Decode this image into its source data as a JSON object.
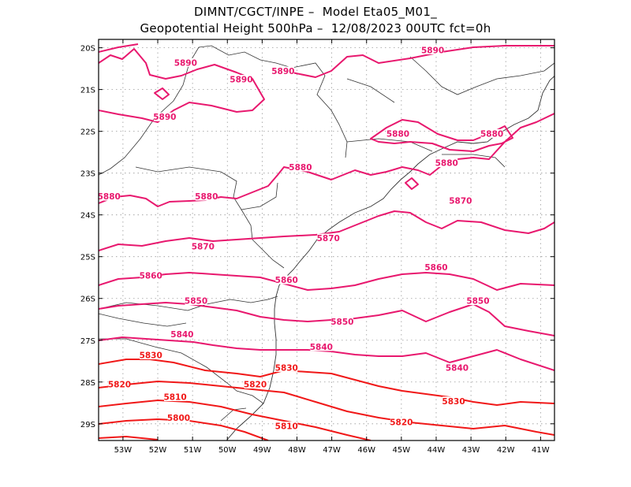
{
  "title": {
    "line1": "DIMNT/CGCT/INPE –  Model Eta05_M01_",
    "line2": "Geopotential Height 500hPa –  12/08/2023 00UTC fct=0h"
  },
  "axes": {
    "lat_labels": [
      "20S",
      "21S",
      "22S",
      "23S",
      "24S",
      "25S",
      "26S",
      "27S",
      "28S",
      "29S"
    ],
    "lat_values": [
      -20,
      -21,
      -22,
      -23,
      -24,
      -25,
      -26,
      -27,
      -28,
      -29
    ],
    "lon_labels": [
      "53W",
      "52W",
      "51W",
      "50W",
      "49W",
      "48W",
      "47W",
      "46W",
      "45W",
      "44W",
      "43W",
      "42W",
      "41W"
    ],
    "lon_values": [
      -53,
      -52,
      -51,
      -50,
      -49,
      -48,
      -47,
      -46,
      -45,
      -44,
      -43,
      -42,
      -41
    ],
    "lon_range": [
      -53.7,
      -40.6
    ],
    "lat_range": [
      -29.4,
      -19.8
    ],
    "grid": "dotted"
  },
  "colors": {
    "border": "#000000",
    "grid": "#999999",
    "coast": "#333333",
    "contour_high": "#e8186e",
    "contour_low": "#f01818"
  },
  "contours": [
    {
      "value": 5890,
      "label": "5890",
      "color": "#e8186e",
      "labels": [
        [
          -51.2,
          -20.4
        ],
        [
          -49.6,
          -20.8
        ],
        [
          -48.4,
          -20.6
        ],
        [
          -44.1,
          -20.1
        ],
        [
          -51.8,
          -21.7
        ]
      ]
    },
    {
      "value": 5880,
      "label": "5880",
      "color": "#e8186e",
      "labels": [
        [
          -47.9,
          -22.9
        ],
        [
          -45.1,
          -22.1
        ],
        [
          -43.7,
          -22.8
        ],
        [
          -42.4,
          -22.1
        ],
        [
          -53.4,
          -23.6
        ],
        [
          -50.6,
          -23.6
        ]
      ]
    },
    {
      "value": 5870,
      "label": "5870",
      "color": "#e8186e",
      "labels": [
        [
          -50.7,
          -24.8
        ],
        [
          -47.1,
          -24.6
        ],
        [
          -43.3,
          -23.7
        ]
      ]
    },
    {
      "value": 5860,
      "label": "5860",
      "color": "#e8186e",
      "labels": [
        [
          -52.2,
          -25.5
        ],
        [
          -48.3,
          -25.6
        ],
        [
          -44.0,
          -25.3
        ]
      ]
    },
    {
      "value": 5850,
      "label": "5850",
      "color": "#e8186e",
      "labels": [
        [
          -50.9,
          -26.1
        ],
        [
          -46.7,
          -26.6
        ],
        [
          -42.8,
          -26.1
        ]
      ]
    },
    {
      "value": 5840,
      "label": "5840",
      "color": "#e8186e",
      "labels": [
        [
          -51.3,
          -26.9
        ],
        [
          -47.3,
          -27.2
        ],
        [
          -43.4,
          -27.7
        ]
      ]
    },
    {
      "value": 5830,
      "label": "5830",
      "color": "#f01818",
      "labels": [
        [
          -52.2,
          -27.4
        ],
        [
          -48.3,
          -27.7
        ],
        [
          -43.5,
          -28.5
        ]
      ]
    },
    {
      "value": 5820,
      "label": "5820",
      "color": "#f01818",
      "labels": [
        [
          -53.1,
          -28.1
        ],
        [
          -49.2,
          -28.1
        ],
        [
          -45.0,
          -29.0
        ]
      ]
    },
    {
      "value": 5810,
      "label": "5810",
      "color": "#f01818",
      "labels": [
        [
          -51.5,
          -28.4
        ],
        [
          -48.3,
          -29.1
        ]
      ]
    },
    {
      "value": 5800,
      "label": "5800",
      "color": "#f01818",
      "labels": [
        [
          -51.4,
          -28.9
        ]
      ]
    }
  ]
}
